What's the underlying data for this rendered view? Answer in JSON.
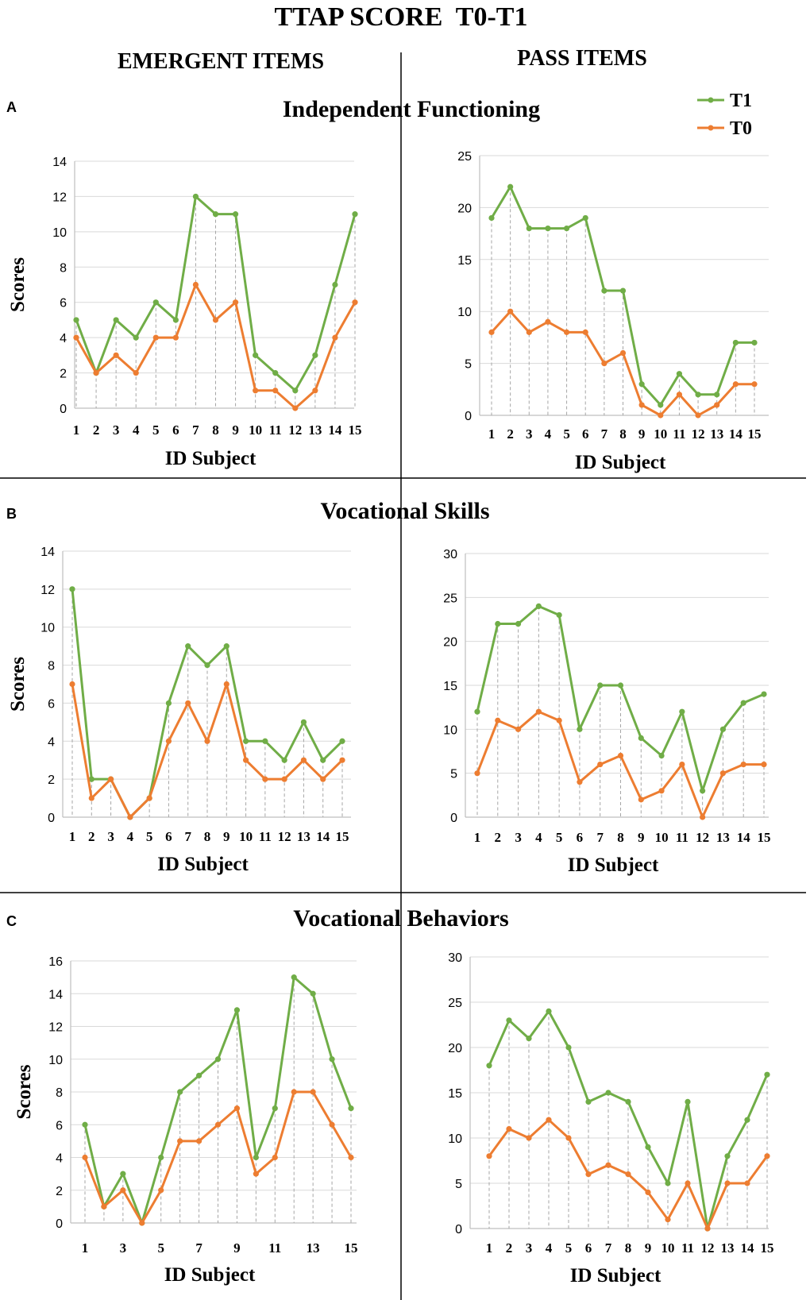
{
  "figure": {
    "title": "TTAP SCORE  T0-T1",
    "column_headers": {
      "left": "EMERGENT ITEMS",
      "right": "PASS ITEMS"
    }
  },
  "legend": {
    "entries": [
      {
        "label": "T1",
        "color": "#70ad47"
      },
      {
        "label": "T0",
        "color": "#ed7d31"
      }
    ]
  },
  "colors": {
    "t1": "#70ad47",
    "t0": "#ed7d31",
    "grid": "#d9d9d9",
    "axis": "#bfbfbf",
    "drop": "#a6a6a6"
  },
  "rows": [
    {
      "letter": "A",
      "title": "Independent Functioning"
    },
    {
      "letter": "B",
      "title": "Vocational Skills"
    },
    {
      "letter": "C",
      "title": "Vocational Behaviors"
    }
  ],
  "chart_data": [
    {
      "id": "A-emergent",
      "type": "line",
      "row": "A",
      "column": "EMERGENT ITEMS",
      "xlabel": "ID Subject",
      "ylabel": "Scores",
      "x": [
        1,
        2,
        3,
        4,
        5,
        6,
        7,
        8,
        9,
        10,
        11,
        12,
        13,
        14,
        15
      ],
      "xtick_labels": [
        "1",
        "2",
        "3",
        "4",
        "5",
        "6",
        "7",
        "8",
        "9",
        "10",
        "11",
        "12",
        "13",
        "14",
        "15"
      ],
      "ylim": [
        0,
        14
      ],
      "yticks": [
        0,
        2,
        4,
        6,
        8,
        10,
        12,
        14
      ],
      "series": [
        {
          "name": "T1",
          "values": [
            5,
            2,
            5,
            4,
            6,
            5,
            12,
            11,
            11,
            3,
            2,
            1,
            3,
            7,
            11
          ]
        },
        {
          "name": "T0",
          "values": [
            4,
            2,
            3,
            2,
            4,
            4,
            7,
            5,
            6,
            1,
            1,
            0,
            1,
            4,
            6
          ]
        }
      ]
    },
    {
      "id": "A-pass",
      "type": "line",
      "row": "A",
      "column": "PASS ITEMS",
      "xlabel": "ID Subject",
      "ylabel": "",
      "x": [
        1,
        2,
        3,
        4,
        5,
        6,
        7,
        8,
        9,
        10,
        11,
        12,
        13,
        14,
        15
      ],
      "xtick_labels": [
        "1",
        "2",
        "3",
        "4",
        "5",
        "6",
        "7",
        "8",
        "9",
        "10",
        "11",
        "12",
        "13",
        "14",
        "15"
      ],
      "ylim": [
        0,
        25
      ],
      "yticks": [
        0,
        5,
        10,
        15,
        20,
        25
      ],
      "series": [
        {
          "name": "T1",
          "values": [
            19,
            22,
            18,
            18,
            18,
            19,
            12,
            12,
            3,
            1,
            4,
            2,
            2,
            7,
            7
          ]
        },
        {
          "name": "T0",
          "values": [
            8,
            10,
            8,
            9,
            8,
            8,
            5,
            6,
            1,
            0,
            2,
            0,
            1,
            3,
            3
          ]
        }
      ]
    },
    {
      "id": "B-emergent",
      "type": "line",
      "row": "B",
      "column": "EMERGENT ITEMS",
      "xlabel": "ID Subject",
      "ylabel": "Scores",
      "x": [
        1,
        2,
        3,
        4,
        5,
        6,
        7,
        8,
        9,
        10,
        11,
        12,
        13,
        14,
        15
      ],
      "xtick_labels": [
        "1",
        "2",
        "3",
        "4",
        "5",
        "6",
        "7",
        "8",
        "9",
        "10",
        "11",
        "12",
        "13",
        "14",
        "15"
      ],
      "ylim": [
        0,
        14
      ],
      "yticks": [
        0,
        2,
        4,
        6,
        8,
        10,
        12,
        14
      ],
      "series": [
        {
          "name": "T1",
          "values": [
            12,
            2,
            2,
            0,
            1,
            6,
            9,
            8,
            9,
            4,
            4,
            3,
            5,
            3,
            4
          ]
        },
        {
          "name": "T0",
          "values": [
            7,
            1,
            2,
            0,
            1,
            4,
            6,
            4,
            7,
            3,
            2,
            2,
            3,
            2,
            3
          ]
        }
      ]
    },
    {
      "id": "B-pass",
      "type": "line",
      "row": "B",
      "column": "PASS ITEMS",
      "xlabel": "ID Subject",
      "ylabel": "",
      "x": [
        1,
        2,
        3,
        4,
        5,
        6,
        7,
        8,
        9,
        10,
        11,
        12,
        13,
        14,
        15
      ],
      "xtick_labels": [
        "1",
        "2",
        "3",
        "4",
        "5",
        "6",
        "7",
        "8",
        "9",
        "10",
        "11",
        "12",
        "13",
        "14",
        "15"
      ],
      "ylim": [
        0,
        30
      ],
      "yticks": [
        0,
        5,
        10,
        15,
        20,
        25,
        30
      ],
      "series": [
        {
          "name": "T1",
          "values": [
            12,
            22,
            22,
            24,
            23,
            10,
            15,
            15,
            9,
            7,
            12,
            3,
            10,
            13,
            14
          ]
        },
        {
          "name": "T0",
          "values": [
            5,
            11,
            10,
            12,
            11,
            4,
            6,
            7,
            2,
            3,
            6,
            0,
            5,
            6,
            6
          ]
        }
      ]
    },
    {
      "id": "C-emergent",
      "type": "line",
      "row": "C",
      "column": "EMERGENT ITEMS",
      "xlabel": "ID Subject",
      "ylabel": "Scores",
      "x": [
        1,
        2,
        3,
        4,
        5,
        6,
        7,
        8,
        9,
        10,
        11,
        12,
        13,
        14,
        15
      ],
      "xtick_labels": [
        "1",
        "",
        "3",
        "",
        "5",
        "",
        "7",
        "",
        "9",
        "",
        "11",
        "",
        "13",
        "",
        "15"
      ],
      "ylim": [
        0,
        16
      ],
      "yticks": [
        0,
        2,
        4,
        6,
        8,
        10,
        12,
        14,
        16
      ],
      "series": [
        {
          "name": "T1",
          "values": [
            6,
            1,
            3,
            0,
            4,
            8,
            9,
            10,
            13,
            4,
            7,
            15,
            14,
            10,
            7
          ]
        },
        {
          "name": "T0",
          "values": [
            4,
            1,
            2,
            0,
            2,
            5,
            5,
            6,
            7,
            3,
            4,
            8,
            8,
            6,
            4
          ]
        }
      ]
    },
    {
      "id": "C-pass",
      "type": "line",
      "row": "C",
      "column": "PASS ITEMS",
      "xlabel": "ID Subject",
      "ylabel": "",
      "x": [
        1,
        2,
        3,
        4,
        5,
        6,
        7,
        8,
        9,
        10,
        11,
        12,
        13,
        14,
        15
      ],
      "xtick_labels": [
        "1",
        "2",
        "3",
        "4",
        "5",
        "6",
        "7",
        "8",
        "9",
        "10",
        "11",
        "12",
        "13",
        "14",
        "15"
      ],
      "ylim": [
        0,
        30
      ],
      "yticks": [
        0,
        5,
        10,
        15,
        20,
        25,
        30
      ],
      "series": [
        {
          "name": "T1",
          "values": [
            18,
            23,
            21,
            24,
            20,
            14,
            15,
            14,
            9,
            5,
            14,
            0,
            8,
            12,
            17
          ]
        },
        {
          "name": "T0",
          "values": [
            8,
            11,
            10,
            12,
            10,
            6,
            7,
            6,
            4,
            1,
            5,
            0,
            5,
            5,
            8
          ]
        }
      ]
    }
  ]
}
